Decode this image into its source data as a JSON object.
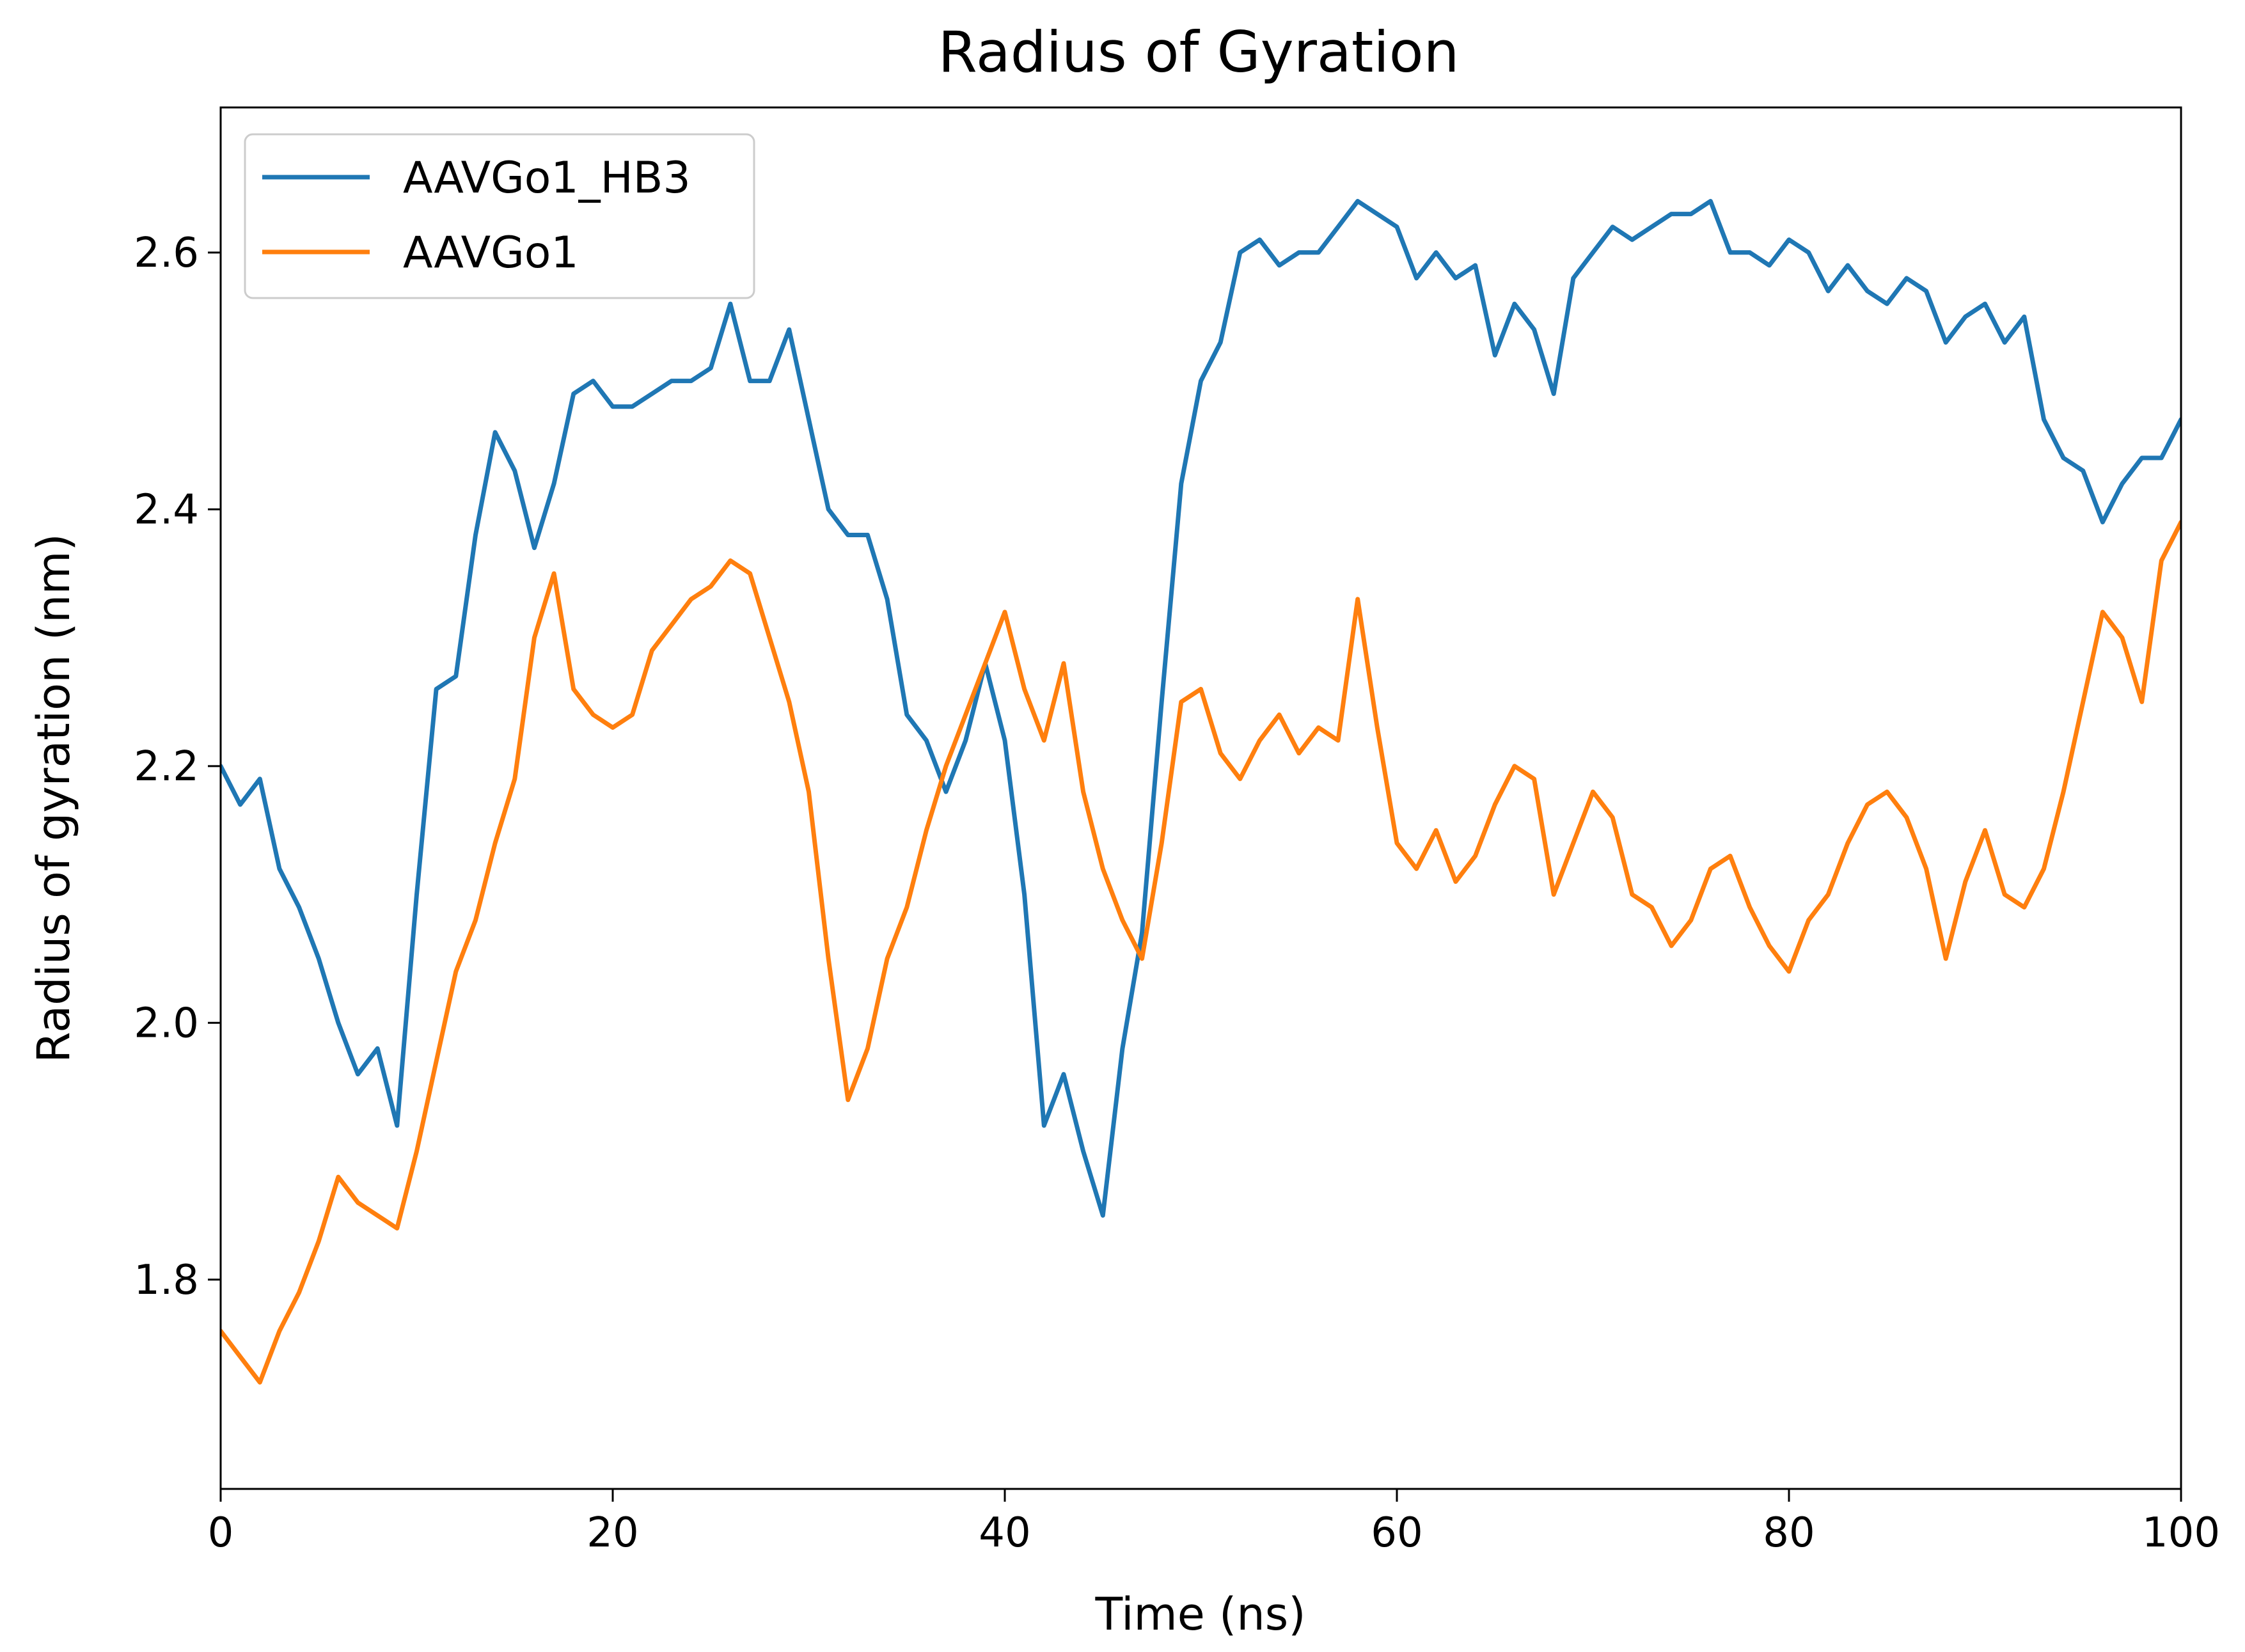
{
  "chart_data": {
    "type": "line",
    "title": "Radius of Gyration",
    "xlabel": "Time (ns)",
    "ylabel": "Radius of gyration (nm)",
    "xlim": [
      0,
      100
    ],
    "ylim": [
      1.637,
      2.713
    ],
    "xticks": [
      0,
      20,
      40,
      60,
      80,
      100
    ],
    "xtick_labels": [
      "0",
      "20",
      "40",
      "60",
      "80",
      "100"
    ],
    "yticks": [
      1.8,
      2.0,
      2.2,
      2.4,
      2.6
    ],
    "ytick_labels": [
      "1.8",
      "2.0",
      "2.2",
      "2.4",
      "2.6"
    ],
    "grid": false,
    "legend_position": "upper-left",
    "series": [
      {
        "name": "AAVGo1_HB3",
        "color": "#1f77b4",
        "x": [
          0,
          1,
          2,
          3,
          4,
          5,
          6,
          7,
          8,
          9,
          10,
          11,
          12,
          13,
          14,
          15,
          16,
          17,
          18,
          19,
          20,
          21,
          22,
          23,
          24,
          25,
          26,
          27,
          28,
          29,
          30,
          31,
          32,
          33,
          34,
          35,
          36,
          37,
          38,
          39,
          40,
          41,
          42,
          43,
          44,
          45,
          46,
          47,
          48,
          49,
          50,
          51,
          52,
          53,
          54,
          55,
          56,
          57,
          58,
          59,
          60,
          61,
          62,
          63,
          64,
          65,
          66,
          67,
          68,
          69,
          70,
          71,
          72,
          73,
          74,
          75,
          76,
          77,
          78,
          79,
          80,
          81,
          82,
          83,
          84,
          85,
          86,
          87,
          88,
          89,
          90,
          91,
          92,
          93,
          94,
          95,
          96,
          97,
          98,
          99,
          100
        ],
        "values": [
          2.2,
          2.17,
          2.19,
          2.12,
          2.09,
          2.05,
          2.0,
          1.96,
          1.98,
          1.92,
          2.1,
          2.26,
          2.27,
          2.38,
          2.46,
          2.43,
          2.37,
          2.42,
          2.49,
          2.5,
          2.48,
          2.48,
          2.49,
          2.5,
          2.5,
          2.51,
          2.56,
          2.5,
          2.5,
          2.54,
          2.47,
          2.4,
          2.38,
          2.38,
          2.33,
          2.24,
          2.22,
          2.18,
          2.22,
          2.28,
          2.22,
          2.1,
          1.92,
          1.96,
          1.9,
          1.85,
          1.98,
          2.07,
          2.25,
          2.42,
          2.5,
          2.53,
          2.6,
          2.61,
          2.59,
          2.6,
          2.6,
          2.62,
          2.64,
          2.63,
          2.62,
          2.58,
          2.6,
          2.58,
          2.59,
          2.52,
          2.56,
          2.54,
          2.49,
          2.58,
          2.6,
          2.62,
          2.61,
          2.62,
          2.63,
          2.63,
          2.64,
          2.6,
          2.6,
          2.59,
          2.61,
          2.6,
          2.57,
          2.59,
          2.57,
          2.56,
          2.58,
          2.57,
          2.53,
          2.55,
          2.56,
          2.53,
          2.55,
          2.47,
          2.44,
          2.43,
          2.39,
          2.42,
          2.44,
          2.44,
          2.47
        ]
      },
      {
        "name": "AAVGo1",
        "color": "#ff7f0e",
        "x": [
          0,
          1,
          2,
          3,
          4,
          5,
          6,
          7,
          8,
          9,
          10,
          11,
          12,
          13,
          14,
          15,
          16,
          17,
          18,
          19,
          20,
          21,
          22,
          23,
          24,
          25,
          26,
          27,
          28,
          29,
          30,
          31,
          32,
          33,
          34,
          35,
          36,
          37,
          38,
          39,
          40,
          41,
          42,
          43,
          44,
          45,
          46,
          47,
          48,
          49,
          50,
          51,
          52,
          53,
          54,
          55,
          56,
          57,
          58,
          59,
          60,
          61,
          62,
          63,
          64,
          65,
          66,
          67,
          68,
          69,
          70,
          71,
          72,
          73,
          74,
          75,
          76,
          77,
          78,
          79,
          80,
          81,
          82,
          83,
          84,
          85,
          86,
          87,
          88,
          89,
          90,
          91,
          92,
          93,
          94,
          95,
          96,
          97,
          98,
          99,
          100
        ],
        "values": [
          1.76,
          1.74,
          1.72,
          1.76,
          1.79,
          1.83,
          1.88,
          1.86,
          1.85,
          1.84,
          1.9,
          1.97,
          2.04,
          2.08,
          2.14,
          2.19,
          2.3,
          2.35,
          2.26,
          2.24,
          2.23,
          2.24,
          2.29,
          2.31,
          2.33,
          2.34,
          2.36,
          2.35,
          2.3,
          2.25,
          2.18,
          2.05,
          1.94,
          1.98,
          2.05,
          2.09,
          2.15,
          2.2,
          2.24,
          2.28,
          2.32,
          2.26,
          2.22,
          2.28,
          2.18,
          2.12,
          2.08,
          2.05,
          2.14,
          2.25,
          2.26,
          2.21,
          2.19,
          2.22,
          2.24,
          2.21,
          2.23,
          2.22,
          2.33,
          2.23,
          2.14,
          2.12,
          2.15,
          2.11,
          2.13,
          2.17,
          2.2,
          2.19,
          2.1,
          2.14,
          2.18,
          2.16,
          2.1,
          2.09,
          2.06,
          2.08,
          2.12,
          2.13,
          2.09,
          2.06,
          2.04,
          2.08,
          2.1,
          2.14,
          2.17,
          2.18,
          2.16,
          2.12,
          2.05,
          2.11,
          2.15,
          2.1,
          2.09,
          2.12,
          2.18,
          2.25,
          2.32,
          2.3,
          2.25,
          2.36,
          2.39
        ]
      }
    ]
  }
}
